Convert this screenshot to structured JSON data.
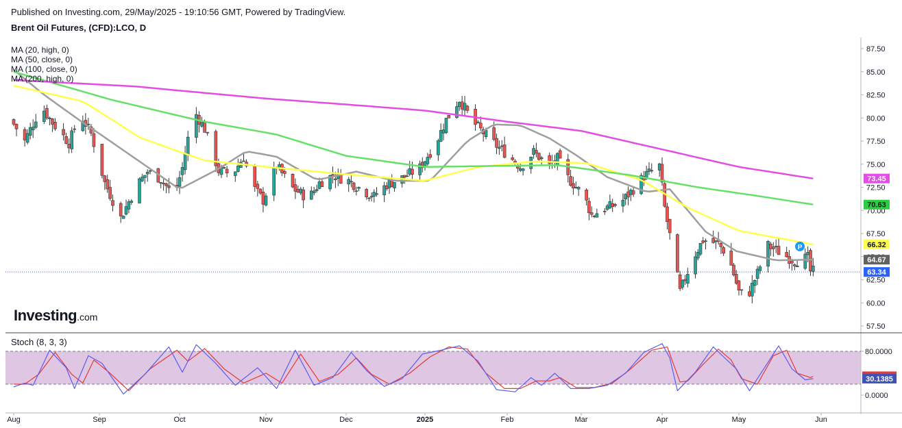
{
  "header": {
    "published": "Published on Investing.com, 29/May/2025 - 19:10:56 GMT, Powered by TradingView.",
    "instrument": "Brent Oil Futures, (CFD):LCO, D"
  },
  "logo": {
    "brand": "Investing",
    "suffix": ".com"
  },
  "ma_legend": [
    "MA (20, high, 0)",
    "MA (50, close, 0)",
    "MA (100, close, 0)",
    "MA (200, high, 0)"
  ],
  "stoch_title": "Stoch (8, 3, 3)",
  "marker_label": "P",
  "colors": {
    "up": "#26a69a",
    "down": "#ef5350",
    "ma20": "#9e9e9e",
    "ma50": "#ffff4d",
    "ma100": "#66e066",
    "ma200": "#e34de3",
    "k_line": "#5b5bf0",
    "d_line": "#e53935",
    "stoch_band": "#d7b8dc",
    "last_price": "#2962ff"
  },
  "chart_data": [
    {
      "type": "candlestick",
      "title": "Brent Oil Futures, (CFD):LCO, D",
      "x_ticks": [
        "Aug",
        "Sep",
        "Oct",
        "Nov",
        "Dec",
        "2025",
        "Feb",
        "Mar",
        "Apr",
        "May",
        "Jun"
      ],
      "y_ticks": [
        "87.50",
        "85.00",
        "82.50",
        "80.00",
        "77.50",
        "75.00",
        "72.50",
        "70.00",
        "67.50",
        "65.00",
        "62.50",
        "60.00",
        "57.50"
      ],
      "ylim": [
        56.5,
        88.2
      ],
      "price_path": [
        [
          "2024-08-01",
          79.8
        ],
        [
          "2024-08-06",
          77.5
        ],
        [
          "2024-08-12",
          81.3
        ],
        [
          "2024-08-16",
          79.5
        ],
        [
          "2024-08-22",
          77.3
        ],
        [
          "2024-08-26",
          80.4
        ],
        [
          "2024-08-30",
          78.3
        ],
        [
          "2024-09-04",
          73.0
        ],
        [
          "2024-09-10",
          69.2
        ],
        [
          "2024-09-16",
          72.7
        ],
        [
          "2024-09-20",
          74.2
        ],
        [
          "2024-09-25",
          73.4
        ],
        [
          "2024-09-30",
          71.5
        ],
        [
          "2024-10-03",
          74.6
        ],
        [
          "2024-10-07",
          80.9
        ],
        [
          "2024-10-11",
          78.8
        ],
        [
          "2024-10-16",
          74.3
        ],
        [
          "2024-10-21",
          73.9
        ],
        [
          "2024-10-25",
          75.8
        ],
        [
          "2024-10-28",
          72.7
        ],
        [
          "2024-11-01",
          71.1
        ],
        [
          "2024-11-06",
          74.8
        ],
        [
          "2024-11-12",
          72.4
        ],
        [
          "2024-11-18",
          71.3
        ],
        [
          "2024-11-22",
          73.0
        ],
        [
          "2024-11-27",
          73.8
        ],
        [
          "2024-12-03",
          73.2
        ],
        [
          "2024-12-09",
          72.1
        ],
        [
          "2024-12-13",
          71.5
        ],
        [
          "2024-12-18",
          72.8
        ],
        [
          "2024-12-24",
          73.5
        ],
        [
          "2024-12-31",
          74.6
        ],
        [
          "2025-01-06",
          77.2
        ],
        [
          "2025-01-10",
          79.8
        ],
        [
          "2025-01-15",
          82.0
        ],
        [
          "2025-01-20",
          79.6
        ],
        [
          "2025-01-24",
          78.4
        ],
        [
          "2025-01-29",
          77.0
        ],
        [
          "2025-02-03",
          75.8
        ],
        [
          "2025-02-07",
          74.7
        ],
        [
          "2025-02-12",
          76.3
        ],
        [
          "2025-02-18",
          74.8
        ],
        [
          "2025-02-21",
          75.6
        ],
        [
          "2025-02-25",
          73.5
        ],
        [
          "2025-03-03",
          71.6
        ],
        [
          "2025-03-06",
          69.5
        ],
        [
          "2025-03-11",
          70.2
        ],
        [
          "2025-03-17",
          70.8
        ],
        [
          "2025-03-21",
          72.0
        ],
        [
          "2025-03-26",
          73.7
        ],
        [
          "2025-04-01",
          74.8
        ],
        [
          "2025-04-03",
          70.3
        ],
        [
          "2025-04-07",
          64.3
        ],
        [
          "2025-04-09",
          61.2
        ],
        [
          "2025-04-14",
          64.8
        ],
        [
          "2025-04-18",
          66.8
        ],
        [
          "2025-04-24",
          66.4
        ],
        [
          "2025-04-28",
          65.0
        ],
        [
          "2025-05-02",
          61.2
        ],
        [
          "2025-05-05",
          60.5
        ],
        [
          "2025-05-09",
          63.2
        ],
        [
          "2025-05-13",
          66.2
        ],
        [
          "2025-05-19",
          65.2
        ],
        [
          "2025-05-23",
          64.5
        ],
        [
          "2025-05-28",
          64.9
        ],
        [
          "2025-05-29",
          63.4
        ]
      ],
      "ma_series": [
        {
          "name": "MA (20, high, 0)",
          "values": [
            [
              "2024-08-01",
              85.2
            ],
            [
              "2024-08-12",
              82.5
            ],
            [
              "2024-08-26",
              79.5
            ],
            [
              "2024-09-05",
              77.5
            ],
            [
              "2024-09-20",
              74.5
            ],
            [
              "2024-10-01",
              72.3
            ],
            [
              "2024-10-15",
              74.5
            ],
            [
              "2024-10-25",
              76.4
            ],
            [
              "2024-11-05",
              75.8
            ],
            [
              "2024-11-20",
              73.3
            ],
            [
              "2024-12-05",
              74.2
            ],
            [
              "2024-12-20",
              73.2
            ],
            [
              "2025-01-03",
              73.2
            ],
            [
              "2025-01-17",
              77.5
            ],
            [
              "2025-01-27",
              79.3
            ],
            [
              "2025-02-06",
              79.2
            ],
            [
              "2025-02-17",
              77.8
            ],
            [
              "2025-02-27",
              76.0
            ],
            [
              "2025-03-11",
              73.6
            ],
            [
              "2025-03-26",
              72.0
            ],
            [
              "2025-04-04",
              72.3
            ],
            [
              "2025-04-18",
              67.7
            ],
            [
              "2025-04-30",
              65.6
            ],
            [
              "2025-05-15",
              64.6
            ],
            [
              "2025-05-29",
              64.67
            ]
          ]
        },
        {
          "name": "MA (50, close, 0)",
          "values": [
            [
              "2024-08-01",
              83.5
            ],
            [
              "2024-08-26",
              81.8
            ],
            [
              "2024-09-16",
              77.9
            ],
            [
              "2024-10-10",
              75.4
            ],
            [
              "2024-11-05",
              74.6
            ],
            [
              "2024-12-01",
              73.9
            ],
            [
              "2025-01-01",
              73.2
            ],
            [
              "2025-01-21",
              74.7
            ],
            [
              "2025-02-12",
              75.3
            ],
            [
              "2025-03-03",
              75.1
            ],
            [
              "2025-03-24",
              73.3
            ],
            [
              "2025-04-11",
              70.3
            ],
            [
              "2025-05-01",
              67.8
            ],
            [
              "2025-05-20",
              66.8
            ],
            [
              "2025-05-29",
              66.32
            ]
          ]
        },
        {
          "name": "MA (100, close, 0)",
          "values": [
            [
              "2024-08-01",
              85.0
            ],
            [
              "2024-09-05",
              82.0
            ],
            [
              "2024-10-10",
              79.6
            ],
            [
              "2024-11-05",
              78.2
            ],
            [
              "2024-12-01",
              75.9
            ],
            [
              "2025-01-01",
              74.7
            ],
            [
              "2025-01-25",
              74.8
            ],
            [
              "2025-02-20",
              74.9
            ],
            [
              "2025-03-20",
              73.8
            ],
            [
              "2025-04-15",
              72.5
            ],
            [
              "2025-05-05",
              71.7
            ],
            [
              "2025-05-29",
              70.63
            ]
          ]
        },
        {
          "name": "MA (200, high, 0)",
          "values": [
            [
              "2024-08-01",
              84.1
            ],
            [
              "2024-09-15",
              83.4
            ],
            [
              "2024-11-01",
              82.1
            ],
            [
              "2025-01-01",
              80.8
            ],
            [
              "2025-02-01",
              79.6
            ],
            [
              "2025-03-01",
              78.6
            ],
            [
              "2025-04-01",
              76.6
            ],
            [
              "2025-05-01",
              74.7
            ],
            [
              "2025-05-29",
              73.45
            ]
          ]
        }
      ],
      "last_values": [
        {
          "label": "66.32",
          "value": 66.32,
          "color": "#ffff4d",
          "text_color": "#131722"
        },
        {
          "label": "64.67",
          "value": 64.67,
          "color": "#616161",
          "text_color": "#ffffff"
        },
        {
          "label": "63.34",
          "value": 63.34,
          "color": "#2962ff",
          "text_color": "#ffffff"
        },
        {
          "label": "73.45",
          "value": 73.45,
          "color": "#e34de3",
          "text_color": "#ffffff"
        },
        {
          "label": "70.63",
          "value": 70.63,
          "color": "#2ecc40",
          "text_color": "#131722"
        }
      ],
      "last_price": 63.34
    },
    {
      "type": "line",
      "title": "Stoch (8, 3, 3)",
      "y_ticks": [
        "80.0000",
        "0.0000"
      ],
      "ylim": [
        -3,
        107
      ],
      "band": [
        20,
        80
      ],
      "k_path": [
        [
          "2024-08-01",
          15
        ],
        [
          "2024-08-05",
          22
        ],
        [
          "2024-08-08",
          18
        ],
        [
          "2024-08-14",
          82
        ],
        [
          "2024-08-20",
          50
        ],
        [
          "2024-08-23",
          12
        ],
        [
          "2024-08-28",
          72
        ],
        [
          "2024-09-02",
          58
        ],
        [
          "2024-09-10",
          2
        ],
        [
          "2024-09-18",
          38
        ],
        [
          "2024-09-27",
          88
        ],
        [
          "2024-10-02",
          42
        ],
        [
          "2024-10-07",
          92
        ],
        [
          "2024-10-14",
          58
        ],
        [
          "2024-10-21",
          18
        ],
        [
          "2024-10-29",
          50
        ],
        [
          "2024-11-05",
          12
        ],
        [
          "2024-11-12",
          82
        ],
        [
          "2024-11-19",
          18
        ],
        [
          "2024-11-26",
          32
        ],
        [
          "2024-12-03",
          78
        ],
        [
          "2024-12-09",
          45
        ],
        [
          "2024-12-16",
          16
        ],
        [
          "2024-12-23",
          30
        ],
        [
          "2024-12-31",
          75
        ],
        [
          "2025-01-07",
          82
        ],
        [
          "2025-01-14",
          90
        ],
        [
          "2025-01-21",
          62
        ],
        [
          "2025-01-28",
          10
        ],
        [
          "2025-02-04",
          6
        ],
        [
          "2025-02-10",
          32
        ],
        [
          "2025-02-14",
          18
        ],
        [
          "2025-02-19",
          40
        ],
        [
          "2025-02-25",
          12
        ],
        [
          "2025-03-04",
          12
        ],
        [
          "2025-03-11",
          18
        ],
        [
          "2025-03-18",
          40
        ],
        [
          "2025-03-25",
          78
        ],
        [
          "2025-04-01",
          94
        ],
        [
          "2025-04-04",
          68
        ],
        [
          "2025-04-07",
          8
        ],
        [
          "2025-04-14",
          42
        ],
        [
          "2025-04-21",
          88
        ],
        [
          "2025-04-25",
          70
        ],
        [
          "2025-04-30",
          48
        ],
        [
          "2025-05-05",
          8
        ],
        [
          "2025-05-12",
          60
        ],
        [
          "2025-05-16",
          90
        ],
        [
          "2025-05-21",
          48
        ],
        [
          "2025-05-26",
          28
        ],
        [
          "2025-05-29",
          30.14
        ]
      ],
      "d_path": [
        [
          "2024-08-01",
          20
        ],
        [
          "2024-08-05",
          20
        ],
        [
          "2024-08-10",
          38
        ],
        [
          "2024-08-16",
          78
        ],
        [
          "2024-08-22",
          38
        ],
        [
          "2024-08-26",
          22
        ],
        [
          "2024-08-30",
          64
        ],
        [
          "2024-09-05",
          40
        ],
        [
          "2024-09-12",
          8
        ],
        [
          "2024-09-20",
          48
        ],
        [
          "2024-09-30",
          82
        ],
        [
          "2024-10-04",
          62
        ],
        [
          "2024-10-10",
          85
        ],
        [
          "2024-10-17",
          48
        ],
        [
          "2024-10-24",
          22
        ],
        [
          "2024-11-01",
          40
        ],
        [
          "2024-11-07",
          22
        ],
        [
          "2024-11-14",
          75
        ],
        [
          "2024-11-21",
          25
        ],
        [
          "2024-11-28",
          38
        ],
        [
          "2024-12-05",
          68
        ],
        [
          "2024-12-11",
          38
        ],
        [
          "2024-12-18",
          20
        ],
        [
          "2024-12-26",
          40
        ],
        [
          "2025-01-03",
          70
        ],
        [
          "2025-01-10",
          88
        ],
        [
          "2025-01-17",
          84
        ],
        [
          "2025-01-24",
          40
        ],
        [
          "2025-01-31",
          12
        ],
        [
          "2025-02-06",
          12
        ],
        [
          "2025-02-12",
          26
        ],
        [
          "2025-02-17",
          26
        ],
        [
          "2025-02-21",
          32
        ],
        [
          "2025-02-27",
          14
        ],
        [
          "2025-03-06",
          14
        ],
        [
          "2025-03-13",
          22
        ],
        [
          "2025-03-20",
          48
        ],
        [
          "2025-03-28",
          82
        ],
        [
          "2025-04-03",
          88
        ],
        [
          "2025-04-08",
          24
        ],
        [
          "2025-04-11",
          26
        ],
        [
          "2025-04-17",
          56
        ],
        [
          "2025-04-23",
          84
        ],
        [
          "2025-04-28",
          64
        ],
        [
          "2025-05-02",
          30
        ],
        [
          "2025-05-08",
          20
        ],
        [
          "2025-05-14",
          72
        ],
        [
          "2025-05-19",
          82
        ],
        [
          "2025-05-23",
          40
        ],
        [
          "2025-05-28",
          32
        ],
        [
          "2025-05-29",
          34.41
        ]
      ],
      "last_values": [
        {
          "label": "34.4142",
          "value": 34.41,
          "color": "#e53935"
        },
        {
          "label": "30.1385",
          "value": 30.14,
          "color": "#3f51b5"
        }
      ]
    }
  ]
}
